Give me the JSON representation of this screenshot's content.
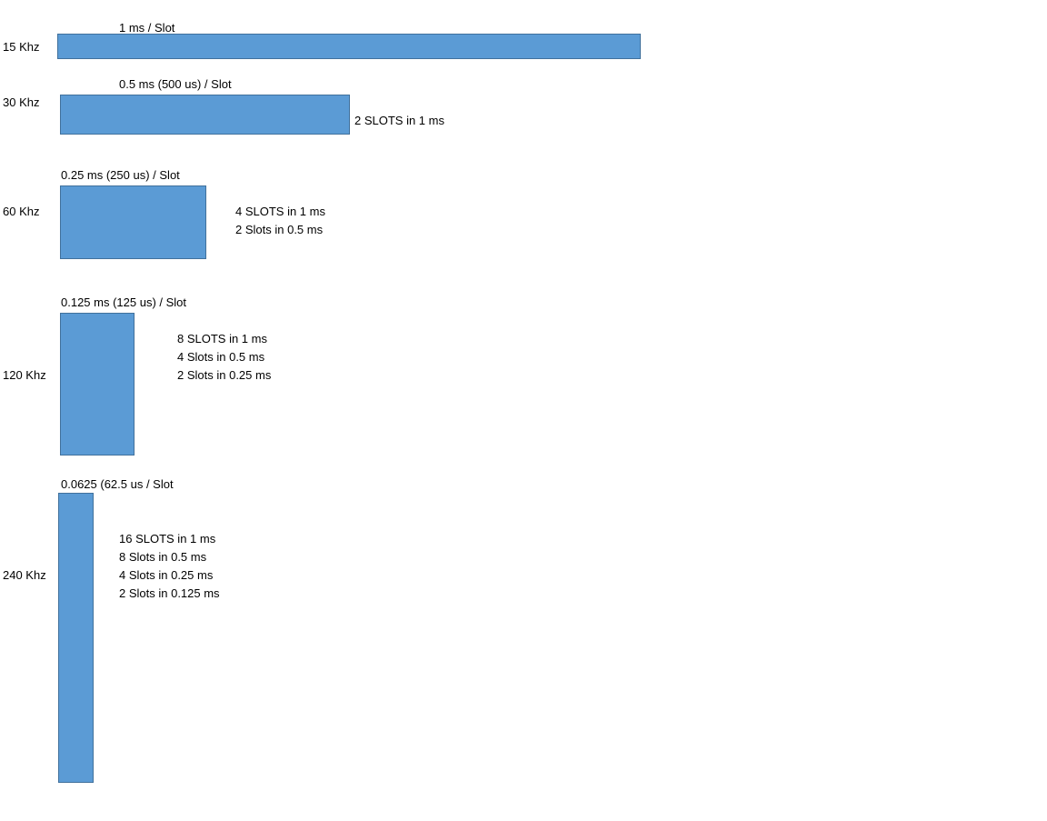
{
  "colors": {
    "bar_fill": "#5b9bd5",
    "bar_border": "#41719c"
  },
  "rows": [
    {
      "freq_label": "15 Khz",
      "slot_label": "1 ms / Slot",
      "notes": []
    },
    {
      "freq_label": "30 Khz",
      "slot_label": "0.5 ms (500 us) / Slot",
      "notes": [
        "2 SLOTS in 1 ms"
      ]
    },
    {
      "freq_label": "60 Khz",
      "slot_label": "0.25 ms (250 us) / Slot",
      "notes": [
        "4 SLOTS in 1 ms",
        "2 Slots in 0.5 ms"
      ]
    },
    {
      "freq_label": "120 Khz",
      "slot_label": "0.125 ms (125 us) / Slot",
      "notes": [
        "8 SLOTS in 1 ms",
        "4 Slots in 0.5 ms",
        "2 Slots in 0.25 ms"
      ]
    },
    {
      "freq_label": "240 Khz",
      "slot_label": "0.0625 (62.5 us / Slot",
      "notes": [
        "16 SLOTS in 1 ms",
        "8 Slots in 0.5 ms",
        "4 Slots in 0.25 ms",
        "2 Slots in 0.125 ms"
      ]
    }
  ]
}
